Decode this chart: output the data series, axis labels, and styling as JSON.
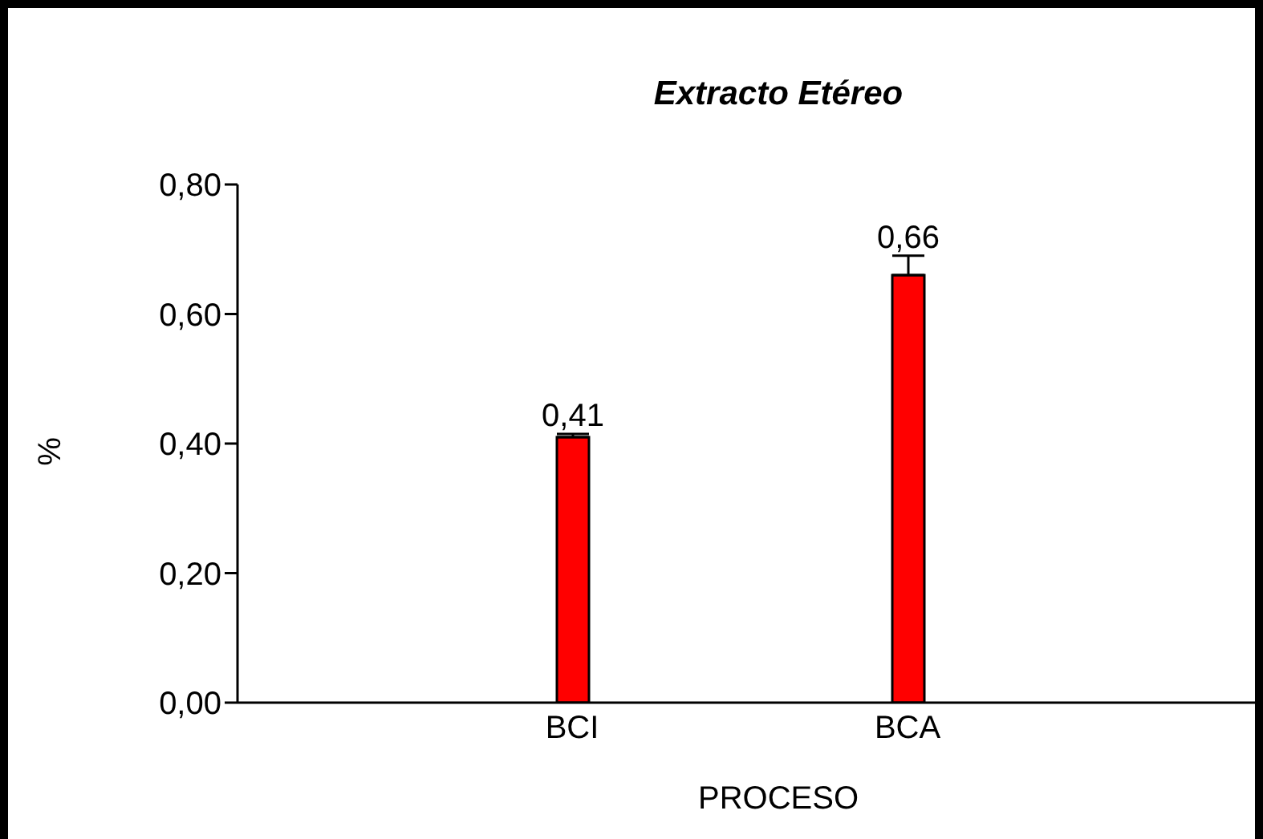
{
  "chart_data": {
    "type": "bar",
    "title": "Extracto Etéreo",
    "xlabel": "PROCESO",
    "ylabel": "%",
    "categories": [
      "BCI",
      "BCA"
    ],
    "series": [
      {
        "color": "#ff0000",
        "values": [
          0.41,
          0.66
        ],
        "errors": [
          [
            0.41,
            0.415
          ],
          [
            0.66,
            0.69
          ]
        ],
        "value_labels": [
          "0,41",
          "0,66"
        ]
      }
    ],
    "ylim": [
      0,
      0.8
    ],
    "yticks": [
      {
        "value": 0,
        "label": "0,00"
      },
      {
        "value": 0.2,
        "label": "0,20"
      },
      {
        "value": 0.4,
        "label": "0,40"
      },
      {
        "value": 0.6,
        "label": "0,60"
      },
      {
        "value": 0.8,
        "label": "0,80"
      }
    ],
    "grid": false,
    "legend": false
  }
}
